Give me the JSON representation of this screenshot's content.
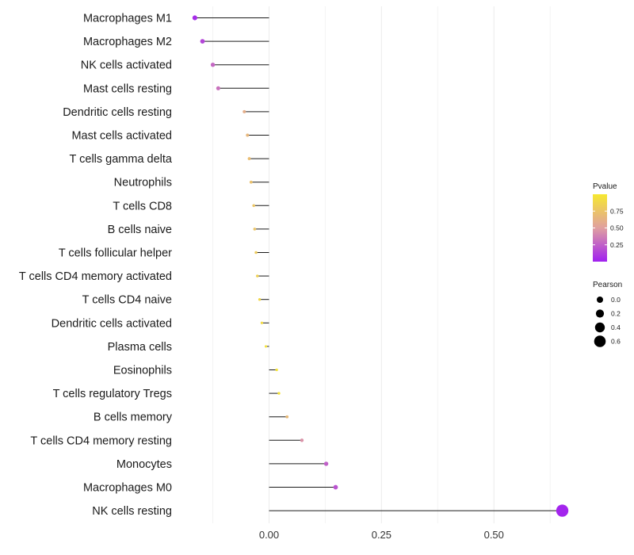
{
  "chart_data": {
    "type": "lollipop",
    "title": "",
    "xlabel": "",
    "ylabel": "",
    "xlim": [
      -0.575,
      0.81
    ],
    "x_ticks": [
      0.0,
      0.25,
      0.5
    ],
    "x_tick_labels": [
      "0.00",
      "0.25",
      "0.50"
    ],
    "categories": [
      "Macrophages M1",
      "Macrophages M2",
      "NK cells activated",
      "Mast cells resting",
      "Dendritic cells resting",
      "Mast cells activated",
      "T cells gamma delta",
      "Neutrophils",
      "T cells CD8",
      "B cells naive",
      "T cells follicular helper",
      "T cells CD4 memory activated",
      "T cells CD4 naive",
      "Dendritic cells activated",
      "Plasma cells",
      "Eosinophils",
      "T cells regulatory  Tregs ",
      "B cells memory",
      "T cells CD4 memory resting",
      "Monocytes",
      "Macrophages M0",
      "NK cells resting"
    ],
    "values": [
      -0.165,
      -0.148,
      -0.125,
      -0.113,
      -0.055,
      -0.048,
      -0.044,
      -0.04,
      -0.034,
      -0.032,
      -0.029,
      -0.026,
      -0.021,
      -0.016,
      -0.007,
      0.017,
      0.022,
      0.04,
      0.073,
      0.127,
      0.148,
      0.652
    ],
    "pvalues": [
      0.05,
      0.15,
      0.28,
      0.32,
      0.6,
      0.66,
      0.7,
      0.73,
      0.76,
      0.75,
      0.8,
      0.84,
      0.88,
      0.9,
      0.95,
      0.97,
      0.96,
      0.68,
      0.45,
      0.25,
      0.2,
      0.02
    ],
    "legend_pvalue": {
      "title": "Pvalue",
      "ticks": [
        0.25,
        0.5,
        0.75
      ],
      "tick_labels": [
        "0.25",
        "0.50",
        "0.75"
      ],
      "range": [
        0,
        1
      ],
      "colors": [
        "#a020f0",
        "#e0a0a0",
        "#f6e830"
      ]
    },
    "legend_pearson": {
      "title": "Pearson",
      "values": [
        0.0,
        0.2,
        0.4,
        0.6
      ],
      "labels": [
        "0.0",
        "0.2",
        "0.4",
        "0.6"
      ]
    },
    "grid": true,
    "legend_position": "right"
  }
}
